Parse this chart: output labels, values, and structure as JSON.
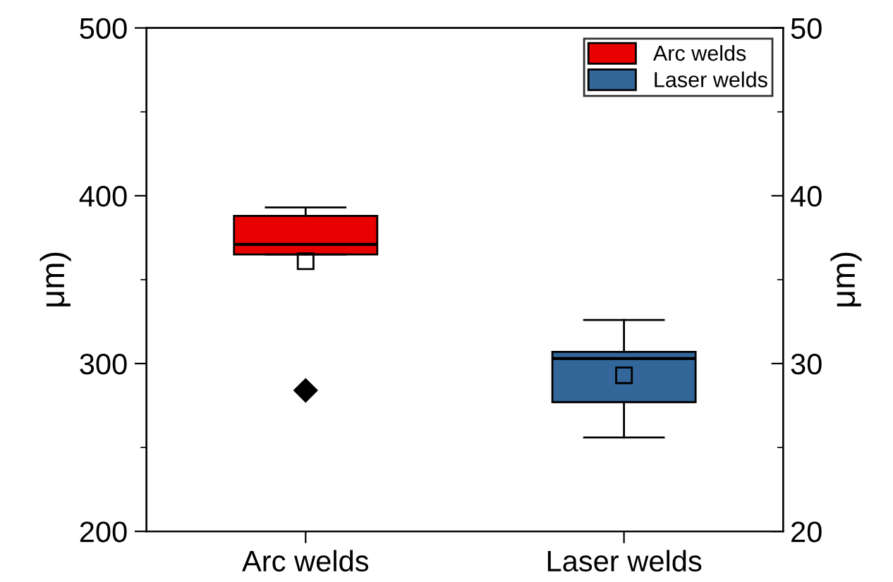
{
  "chart_data": {
    "type": "box",
    "categories": [
      "Arc welds",
      "Laser welds"
    ],
    "ylabel": "μm)",
    "y2label": "μm)",
    "ylim": [
      200,
      500
    ],
    "yticks": [
      200,
      300,
      400,
      500
    ],
    "y2lim": [
      20,
      50
    ],
    "y2ticks": [
      20,
      30,
      40,
      50
    ],
    "series": [
      {
        "name": "Arc welds",
        "color": "#e80000",
        "boxes": [
          {
            "low": 365,
            "q1": 365,
            "median": 371,
            "q3": 388,
            "high": 393,
            "mean": 361,
            "outliers": [
              284
            ]
          },
          null
        ]
      },
      {
        "name": "Laser welds",
        "color": "#336699",
        "boxes": [
          null,
          {
            "low": 256,
            "q1": 277,
            "median": 303,
            "q3": 307,
            "high": 326,
            "mean": 293
          }
        ]
      }
    ],
    "legend": "top right",
    "grid": false
  }
}
